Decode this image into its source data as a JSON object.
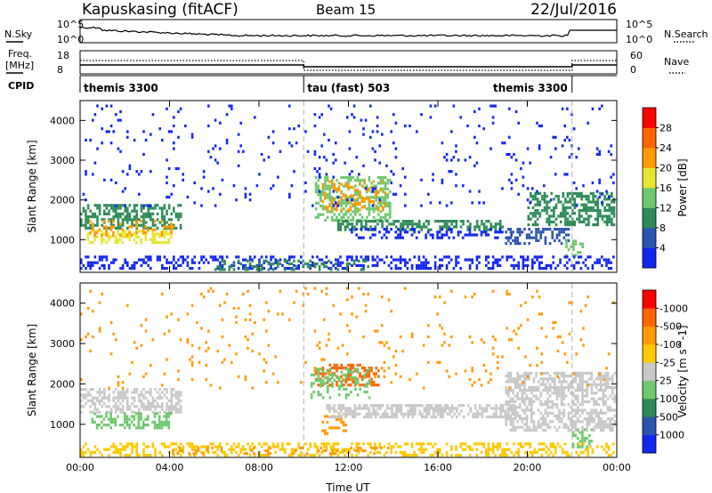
{
  "header": {
    "station": "Kapuskasing (fitACF)",
    "beam": "Beam 15",
    "date": "22/Jul/2016"
  },
  "strip_labels": {
    "nsky": "N.Sky",
    "nsearch": "N.Search",
    "freq_line1": "Freq.",
    "freq_line2": "[MHz]",
    "nave": "Nave",
    "cpid": "CPID",
    "noise_top": "10^5",
    "noise_bottom": "10^0",
    "freq_top": "18",
    "freq_bottom": "8",
    "nave_top": "60",
    "nave_bottom": "0"
  },
  "cpid_segments": [
    {
      "label": "themis 3300",
      "start_hour": 0.0,
      "end_hour": 10.0,
      "align": "left"
    },
    {
      "label": "tau (fast) 503",
      "start_hour": 10.0,
      "end_hour": 22.0,
      "align": "left"
    },
    {
      "label": "themis 3300",
      "start_hour": 22.0,
      "end_hour": 24.0,
      "align": "right"
    }
  ],
  "chart_data": [
    {
      "type": "heatmap",
      "name": "power",
      "ylabel": "Slant Range [km]",
      "ylim": [
        180,
        4500
      ],
      "yticks": [
        1000,
        2000,
        3000,
        4000
      ],
      "xlim": [
        0,
        24
      ],
      "colorbar": {
        "label": "Power [dB]",
        "ticks": [
          "4",
          "8",
          "12",
          "16",
          "20",
          "24",
          "28"
        ],
        "colors": [
          "#1326f0",
          "#2d55b0",
          "#2e8b57",
          "#6ec86e",
          "#e6e632",
          "#ff9a00",
          "#ff6400",
          "#ff0000"
        ]
      },
      "bands": [
        {
          "h0": 0.0,
          "h1": 4.6,
          "r0": 1250,
          "r1": 1900,
          "color": "#2e8b57",
          "density": 0.55
        },
        {
          "h0": 0.3,
          "h1": 4.2,
          "r0": 850,
          "r1": 1250,
          "color": "#e6e632",
          "density": 0.5
        },
        {
          "h0": 0.3,
          "h1": 4.3,
          "r0": 1000,
          "r1": 1500,
          "color": "#ff9a00",
          "density": 0.25
        },
        {
          "h0": 10.5,
          "h1": 14.0,
          "r0": 1400,
          "r1": 2600,
          "color": "#6ec86e",
          "density": 0.45
        },
        {
          "h0": 10.8,
          "h1": 13.7,
          "r0": 1700,
          "r1": 2500,
          "color": "#ff9a00",
          "density": 0.3
        },
        {
          "h0": 11.5,
          "h1": 19.0,
          "r0": 1150,
          "r1": 1500,
          "color": "#2e8b57",
          "density": 0.55
        },
        {
          "h0": 12.0,
          "h1": 19.5,
          "r0": 1000,
          "r1": 1300,
          "color": "#1326f0",
          "density": 0.35
        },
        {
          "h0": 19.0,
          "h1": 22.0,
          "r0": 800,
          "r1": 1300,
          "color": "#2d55b0",
          "density": 0.5
        },
        {
          "h0": 20.0,
          "h1": 24.0,
          "r0": 1300,
          "r1": 2200,
          "color": "#2e8b57",
          "density": 0.55
        },
        {
          "h0": 21.7,
          "h1": 22.6,
          "r0": 500,
          "r1": 1000,
          "color": "#6ec86e",
          "density": 0.5
        },
        {
          "h0": 0.0,
          "h1": 24.0,
          "r0": 180,
          "r1": 600,
          "color": "#1326f0",
          "density": 0.35
        },
        {
          "h0": 6.0,
          "h1": 13.0,
          "r0": 180,
          "r1": 500,
          "color": "#2e8b57",
          "density": 0.3
        },
        {
          "h0": 0.0,
          "h1": 24.0,
          "r0": 1800,
          "r1": 4400,
          "color": "#1326f0",
          "density": 0.04
        }
      ],
      "markers": [
        10.0,
        22.0
      ]
    },
    {
      "type": "heatmap",
      "name": "velocity",
      "ylabel": "Slant Range [km]",
      "xlabel": "Time UT",
      "ylim": [
        180,
        4500
      ],
      "yticks": [
        1000,
        2000,
        3000,
        4000
      ],
      "xlim": [
        0,
        24
      ],
      "xticks": [
        "00:00",
        "04:00",
        "08:00",
        "12:00",
        "16:00",
        "20:00",
        "00:00"
      ],
      "colorbar": {
        "label": "Velocity [m s^-1]",
        "ticks": [
          "1000",
          "500",
          "100",
          "25",
          "-25",
          "-100",
          "-500",
          "-1000"
        ],
        "colors": [
          "#1326f0",
          "#2d55b0",
          "#2e8b57",
          "#6ec86e",
          "#c8c8c8",
          "#ffc800",
          "#ff9a00",
          "#ff6400",
          "#ff0000"
        ]
      },
      "bands": [
        {
          "h0": 0.0,
          "h1": 4.6,
          "r0": 1250,
          "r1": 1900,
          "color": "#c8c8c8",
          "density": 0.55
        },
        {
          "h0": 0.5,
          "h1": 4.2,
          "r0": 850,
          "r1": 1300,
          "color": "#6ec86e",
          "density": 0.5
        },
        {
          "h0": 10.5,
          "h1": 13.5,
          "r0": 1900,
          "r1": 2500,
          "color": "#ff6400",
          "density": 0.45
        },
        {
          "h0": 10.3,
          "h1": 13.0,
          "r0": 1600,
          "r1": 2400,
          "color": "#6ec86e",
          "density": 0.3
        },
        {
          "h0": 10.8,
          "h1": 12.0,
          "r0": 700,
          "r1": 1300,
          "color": "#ff9a00",
          "density": 0.35
        },
        {
          "h0": 11.0,
          "h1": 19.5,
          "r0": 1100,
          "r1": 1500,
          "color": "#c8c8c8",
          "density": 0.6
        },
        {
          "h0": 19.0,
          "h1": 24.0,
          "r0": 800,
          "r1": 2300,
          "color": "#c8c8c8",
          "density": 0.55
        },
        {
          "h0": 22.0,
          "h1": 23.0,
          "r0": 400,
          "r1": 900,
          "color": "#6ec86e",
          "density": 0.45
        },
        {
          "h0": 0.0,
          "h1": 24.0,
          "r0": 180,
          "r1": 550,
          "color": "#ffc800",
          "density": 0.35
        },
        {
          "h0": 4.0,
          "h1": 14.0,
          "r0": 180,
          "r1": 450,
          "color": "#ff9a00",
          "density": 0.2
        },
        {
          "h0": 0.0,
          "h1": 24.0,
          "r0": 1800,
          "r1": 4400,
          "color": "#ff9a00",
          "density": 0.03
        }
      ],
      "markers": [
        10.0,
        22.0
      ]
    }
  ]
}
